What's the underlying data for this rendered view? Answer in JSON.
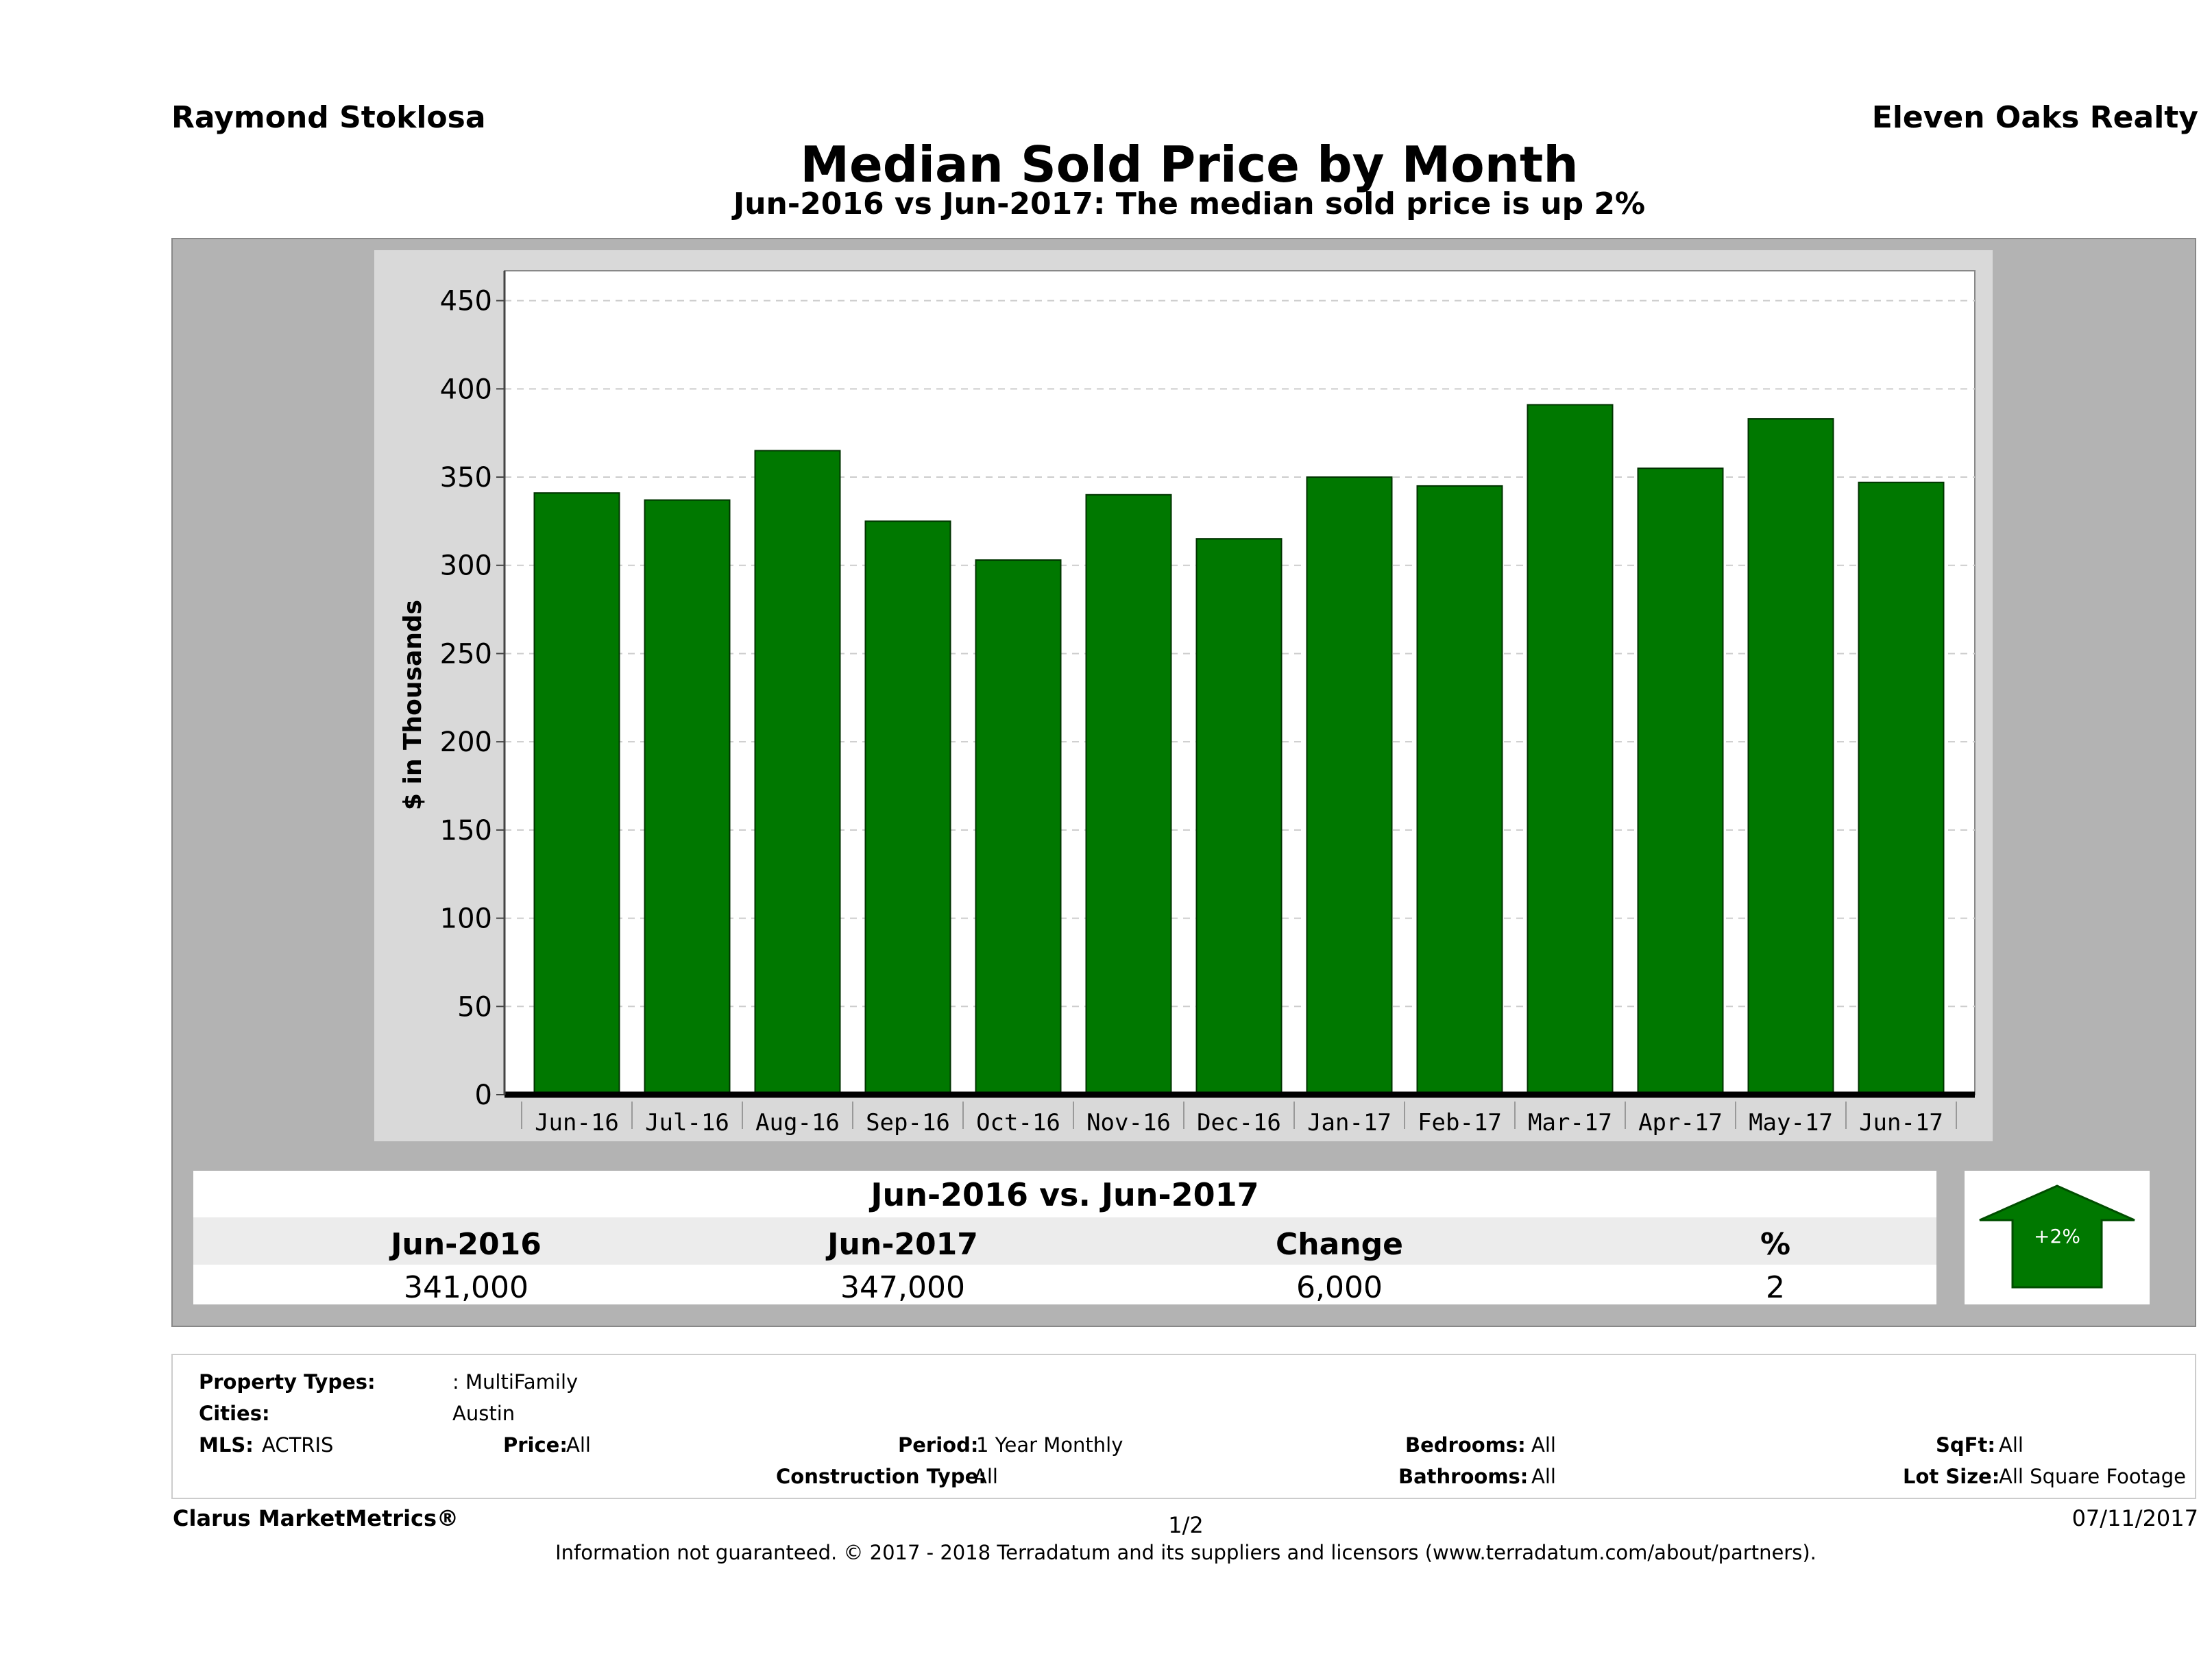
{
  "header": {
    "agent": "Raymond Stoklosa",
    "company": "Eleven Oaks Realty",
    "title": "Median Sold Price by Month",
    "subtitle": "Jun-2016 vs Jun-2017: The median sold price is up 2%"
  },
  "chart_data": {
    "type": "bar",
    "categories": [
      "Jun-16",
      "Jul-16",
      "Aug-16",
      "Sep-16",
      "Oct-16",
      "Nov-16",
      "Dec-16",
      "Jan-17",
      "Feb-17",
      "Mar-17",
      "Apr-17",
      "May-17",
      "Jun-17"
    ],
    "values": [
      341,
      337,
      365,
      325,
      303,
      340,
      315,
      350,
      345,
      391,
      355,
      383,
      347
    ],
    "ylabel": "$ in Thousands",
    "yticks": [
      0,
      50,
      100,
      150,
      200,
      250,
      300,
      350,
      400,
      450
    ],
    "ylim": [
      0,
      465
    ],
    "grid": true,
    "bar_color": "#007800"
  },
  "comparison": {
    "title": "Jun-2016 vs. Jun-2017",
    "headers": [
      "Jun-2016",
      "Jun-2017",
      "Change",
      "%"
    ],
    "values": [
      "341,000",
      "347,000",
      "6,000",
      "2"
    ],
    "badge": "+2%",
    "arrow_color": "#007800"
  },
  "filters": {
    "property_types_label": "Property Types:",
    "property_types_value": ": MultiFamily",
    "cities_label": "Cities:",
    "cities_value": "Austin",
    "mls_label": "MLS:",
    "mls_value": "ACTRIS",
    "price_label": "Price:",
    "price_value": "All",
    "period_label": "Period:",
    "period_value": "1 Year Monthly",
    "construction_label": "Construction Type:",
    "construction_value": "All",
    "bedrooms_label": "Bedrooms:",
    "bedrooms_value": "All",
    "bathrooms_label": "Bathrooms:",
    "bathrooms_value": "All",
    "sqft_label": "SqFt:",
    "sqft_value": "All",
    "lotsize_label": "Lot Size:",
    "lotsize_value": "All Square Footage"
  },
  "footer": {
    "brand": "Clarus MarketMetrics®",
    "page": "1/2",
    "date": "07/11/2017",
    "disclaimer": "Information not guaranteed. © 2017 - 2018 Terradatum and its suppliers and licensors (www.terradatum.com/about/partners)."
  }
}
